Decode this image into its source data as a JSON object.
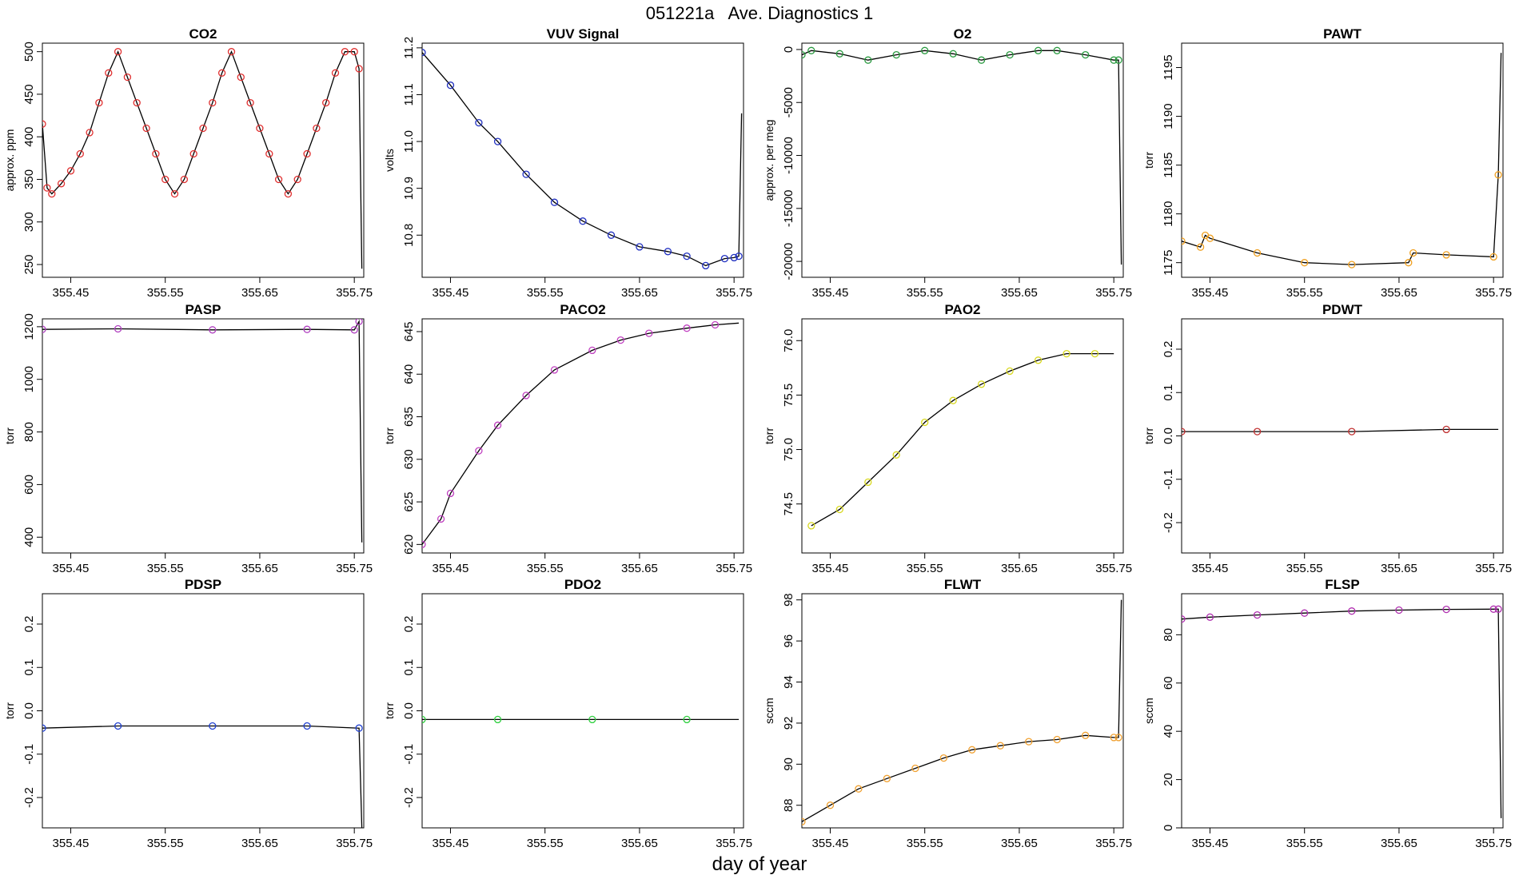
{
  "figure": {
    "title": "051221a   Ave. Diagnostics 1",
    "xlabel": "day of year"
  },
  "chart_data": [
    {
      "type": "line",
      "title": "CO2",
      "ylabel": "approx. ppm",
      "marker_color": "#e03030",
      "xlim": [
        355.42,
        355.76
      ],
      "xticks": [
        "355.45",
        "355.55",
        "355.65",
        "355.75"
      ],
      "ylim": [
        235,
        510
      ],
      "yticks": [
        250,
        300,
        350,
        400,
        450,
        500
      ],
      "x": [
        355.42,
        355.425,
        355.43,
        355.44,
        355.45,
        355.46,
        355.47,
        355.48,
        355.49,
        355.5,
        355.51,
        355.52,
        355.53,
        355.54,
        355.55,
        355.56,
        355.57,
        355.58,
        355.59,
        355.6,
        355.61,
        355.62,
        355.63,
        355.64,
        355.65,
        355.66,
        355.67,
        355.68,
        355.69,
        355.7,
        355.71,
        355.72,
        355.73,
        355.74,
        355.75,
        355.755,
        355.758
      ],
      "y": [
        415,
        340,
        333,
        345,
        360,
        380,
        405,
        440,
        475,
        500,
        470,
        440,
        410,
        380,
        350,
        333,
        350,
        380,
        410,
        440,
        475,
        500,
        470,
        440,
        410,
        380,
        350,
        333,
        350,
        380,
        410,
        440,
        475,
        500,
        500,
        480,
        245
      ]
    },
    {
      "type": "line",
      "title": "VUV Signal",
      "ylabel": "volts",
      "marker_color": "#2030c0",
      "xlim": [
        355.42,
        355.76
      ],
      "xticks": [
        "355.45",
        "355.55",
        "355.65",
        "355.75"
      ],
      "ylim": [
        10.71,
        11.21
      ],
      "yticks": [
        "10.8",
        "10.9",
        "11.0",
        "11.1",
        "11.2"
      ],
      "x": [
        355.42,
        355.45,
        355.48,
        355.5,
        355.53,
        355.56,
        355.59,
        355.62,
        355.65,
        355.68,
        355.7,
        355.72,
        355.74,
        355.75,
        355.755,
        355.758
      ],
      "y": [
        11.19,
        11.12,
        11.04,
        11.0,
        10.93,
        10.87,
        10.83,
        10.8,
        10.775,
        10.765,
        10.755,
        10.735,
        10.75,
        10.752,
        10.755,
        11.06
      ]
    },
    {
      "type": "line",
      "title": "O2",
      "ylabel": "approx. per meg",
      "marker_color": "#2a9a40",
      "xlim": [
        355.42,
        355.76
      ],
      "xticks": [
        "355.45",
        "355.55",
        "355.65",
        "355.75"
      ],
      "ylim": [
        -21500,
        600
      ],
      "yticks": [
        0,
        -5000,
        -10000,
        -15000,
        -20000
      ],
      "x": [
        355.42,
        355.43,
        355.46,
        355.49,
        355.52,
        355.55,
        355.58,
        355.61,
        355.64,
        355.67,
        355.69,
        355.72,
        355.75,
        355.755,
        355.758
      ],
      "y": [
        -500,
        -100,
        -400,
        -1000,
        -500,
        -100,
        -400,
        -1000,
        -500,
        -100,
        -100,
        -500,
        -1000,
        -1000,
        -20300
      ]
    },
    {
      "type": "line",
      "title": "PAWT",
      "ylabel": "torr",
      "marker_color": "#f0a020",
      "xlim": [
        355.42,
        355.76
      ],
      "xticks": [
        "355.45",
        "355.55",
        "355.65",
        "355.75"
      ],
      "ylim": [
        1173.5,
        1197.5
      ],
      "yticks": [
        1175,
        1180,
        1185,
        1190,
        1195
      ],
      "x": [
        355.42,
        355.44,
        355.445,
        355.45,
        355.5,
        355.55,
        355.6,
        355.66,
        355.665,
        355.7,
        355.75,
        355.755,
        355.758
      ],
      "y": [
        1177.2,
        1176.6,
        1177.8,
        1177.5,
        1176.0,
        1175.0,
        1174.8,
        1175.0,
        1176.0,
        1175.8,
        1175.6,
        1184.0,
        1196.5
      ]
    },
    {
      "type": "line",
      "title": "PASP",
      "ylabel": "torr",
      "marker_color": "#b040c0",
      "xlim": [
        355.42,
        355.76
      ],
      "xticks": [
        "355.45",
        "355.55",
        "355.65",
        "355.75"
      ],
      "ylim": [
        340,
        1230
      ],
      "yticks": [
        400,
        600,
        800,
        1000,
        1200
      ],
      "x": [
        355.42,
        355.5,
        355.6,
        355.7,
        355.75,
        355.755,
        355.758
      ],
      "y": [
        1190,
        1192,
        1188,
        1190,
        1188,
        1220,
        380
      ]
    },
    {
      "type": "line",
      "title": "PACO2",
      "ylabel": "torr",
      "marker_color": "#c040c0",
      "xlim": [
        355.42,
        355.76
      ],
      "xticks": [
        "355.45",
        "355.55",
        "355.65",
        "355.75"
      ],
      "ylim": [
        619,
        646.5
      ],
      "yticks": [
        620,
        625,
        630,
        635,
        640,
        645
      ],
      "x": [
        355.42,
        355.44,
        355.45,
        355.48,
        355.5,
        355.53,
        355.56,
        355.6,
        355.63,
        355.66,
        355.7,
        355.73,
        355.755
      ],
      "y": [
        620,
        623,
        626,
        631,
        634,
        637.5,
        640.5,
        642.8,
        644,
        644.8,
        645.4,
        645.8,
        646
      ]
    },
    {
      "type": "line",
      "title": "PAO2",
      "ylabel": "torr",
      "marker_color": "#d8d820",
      "xlim": [
        355.42,
        355.76
      ],
      "xticks": [
        "355.45",
        "355.55",
        "355.65",
        "355.75"
      ],
      "ylim": [
        74.05,
        76.2
      ],
      "yticks": [
        "74.5",
        "75.0",
        "75.5",
        "76.0"
      ],
      "x": [
        355.43,
        355.46,
        355.49,
        355.52,
        355.55,
        355.58,
        355.61,
        355.64,
        355.67,
        355.7,
        355.73,
        355.75
      ],
      "y": [
        74.3,
        74.45,
        74.7,
        74.95,
        75.25,
        75.45,
        75.6,
        75.72,
        75.82,
        75.88,
        75.88,
        75.88
      ]
    },
    {
      "type": "line",
      "title": "PDWT",
      "ylabel": "torr",
      "marker_color": "#c03030",
      "xlim": [
        355.42,
        355.76
      ],
      "xticks": [
        "355.45",
        "355.55",
        "355.65",
        "355.75"
      ],
      "ylim": [
        -0.27,
        0.27
      ],
      "yticks": [
        "-0.2",
        "-0.1",
        "0.0",
        "0.1",
        "0.2"
      ],
      "x": [
        355.42,
        355.5,
        355.6,
        355.7,
        355.755
      ],
      "y": [
        0.01,
        0.01,
        0.01,
        0.015,
        0.015
      ]
    },
    {
      "type": "line",
      "title": "PDSP",
      "ylabel": "torr",
      "marker_color": "#2040d0",
      "xlim": [
        355.42,
        355.76
      ],
      "xticks": [
        "355.45",
        "355.55",
        "355.65",
        "355.75"
      ],
      "ylim": [
        -0.27,
        0.27
      ],
      "yticks": [
        "-0.2",
        "-0.1",
        "0.0",
        "0.1",
        "0.2"
      ],
      "x": [
        355.42,
        355.5,
        355.6,
        355.7,
        355.755,
        355.758
      ],
      "y": [
        -0.04,
        -0.035,
        -0.035,
        -0.035,
        -0.04,
        -0.27
      ]
    },
    {
      "type": "line",
      "title": "PDO2",
      "ylabel": "torr",
      "marker_color": "#30d040",
      "xlim": [
        355.42,
        355.76
      ],
      "xticks": [
        "355.45",
        "355.55",
        "355.65",
        "355.75"
      ],
      "ylim": [
        -0.27,
        0.27
      ],
      "yticks": [
        "-0.2",
        "-0.1",
        "0.0",
        "0.1",
        "0.2"
      ],
      "x": [
        355.42,
        355.5,
        355.6,
        355.7,
        355.755
      ],
      "y": [
        -0.02,
        -0.02,
        -0.02,
        -0.02,
        -0.02
      ]
    },
    {
      "type": "line",
      "title": "FLWT",
      "ylabel": "sccm",
      "marker_color": "#f0a030",
      "xlim": [
        355.42,
        355.76
      ],
      "xticks": [
        "355.45",
        "355.55",
        "355.65",
        "355.75"
      ],
      "ylim": [
        86.9,
        98.3
      ],
      "yticks": [
        88,
        90,
        92,
        94,
        96,
        98
      ],
      "x": [
        355.42,
        355.45,
        355.48,
        355.51,
        355.54,
        355.57,
        355.6,
        355.63,
        355.66,
        355.69,
        355.72,
        355.75,
        355.755,
        355.758
      ],
      "y": [
        87.2,
        88.0,
        88.8,
        89.3,
        89.8,
        90.3,
        90.7,
        90.9,
        91.1,
        91.2,
        91.4,
        91.3,
        91.3,
        98.0
      ]
    },
    {
      "type": "line",
      "title": "FLSP",
      "ylabel": "sccm",
      "marker_color": "#b030b0",
      "xlim": [
        355.42,
        355.76
      ],
      "xticks": [
        "355.45",
        "355.55",
        "355.65",
        "355.75"
      ],
      "ylim": [
        0,
        97
      ],
      "yticks": [
        0,
        20,
        40,
        60,
        80
      ],
      "x": [
        355.42,
        355.45,
        355.5,
        355.55,
        355.6,
        355.65,
        355.7,
        355.75,
        355.755,
        355.758
      ],
      "y": [
        86.5,
        87.3,
        88.2,
        89,
        89.8,
        90.2,
        90.5,
        90.6,
        90.6,
        4
      ]
    }
  ]
}
